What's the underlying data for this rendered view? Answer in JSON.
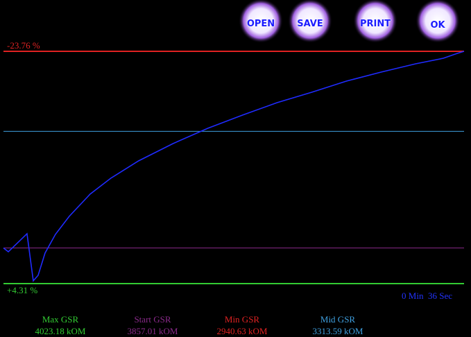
{
  "buttons": [
    "OPEN",
    "SAVE",
    "PRINT",
    "OK"
  ],
  "chart_data": {
    "type": "line",
    "top_label": "-23.76 %",
    "bottom_label": "+4.31 %",
    "elapsed": "0 Min  36 Sec",
    "xlim": [
      0,
      36
    ],
    "ylim": [
      4023.18,
      2940.63
    ],
    "x": [
      0,
      0.38,
      1.84,
      2.33,
      2.71,
      3.25,
      4.06,
      5.14,
      6.77,
      8.39,
      10.56,
      13.26,
      15.97,
      18.68,
      21.39,
      24.1,
      26.8,
      29.51,
      32.22,
      34.38,
      35.47,
      36
    ],
    "series": [
      {
        "color": "#1f2bff",
        "values": [
          3857.01,
          3874.6,
          3790.5,
          4010.3,
          3984.4,
          3881.0,
          3793.8,
          3709.7,
          3606.3,
          3532.0,
          3451.2,
          3370.4,
          3299.3,
          3237.9,
          3179.8,
          3131.3,
          3079.6,
          3037.6,
          2998.8,
          2973.0,
          2950.3,
          2940.63
        ]
      }
    ],
    "reference_lines": [
      {
        "name": "Max GSR",
        "value": 4023.18,
        "label": "4023.18 kOM",
        "color": "#33cc33"
      },
      {
        "name": "Start GSR",
        "value": 3857.01,
        "label": "3857.01 kOM",
        "color": "#8a2a8a"
      },
      {
        "name": "Min GSR",
        "value": 2940.63,
        "label": "2940.63 kOM",
        "color": "#e02222"
      },
      {
        "name": "Mid GSR",
        "value": 3313.59,
        "label": "3313.59 kOM",
        "color": "#3fa0e0"
      }
    ]
  }
}
